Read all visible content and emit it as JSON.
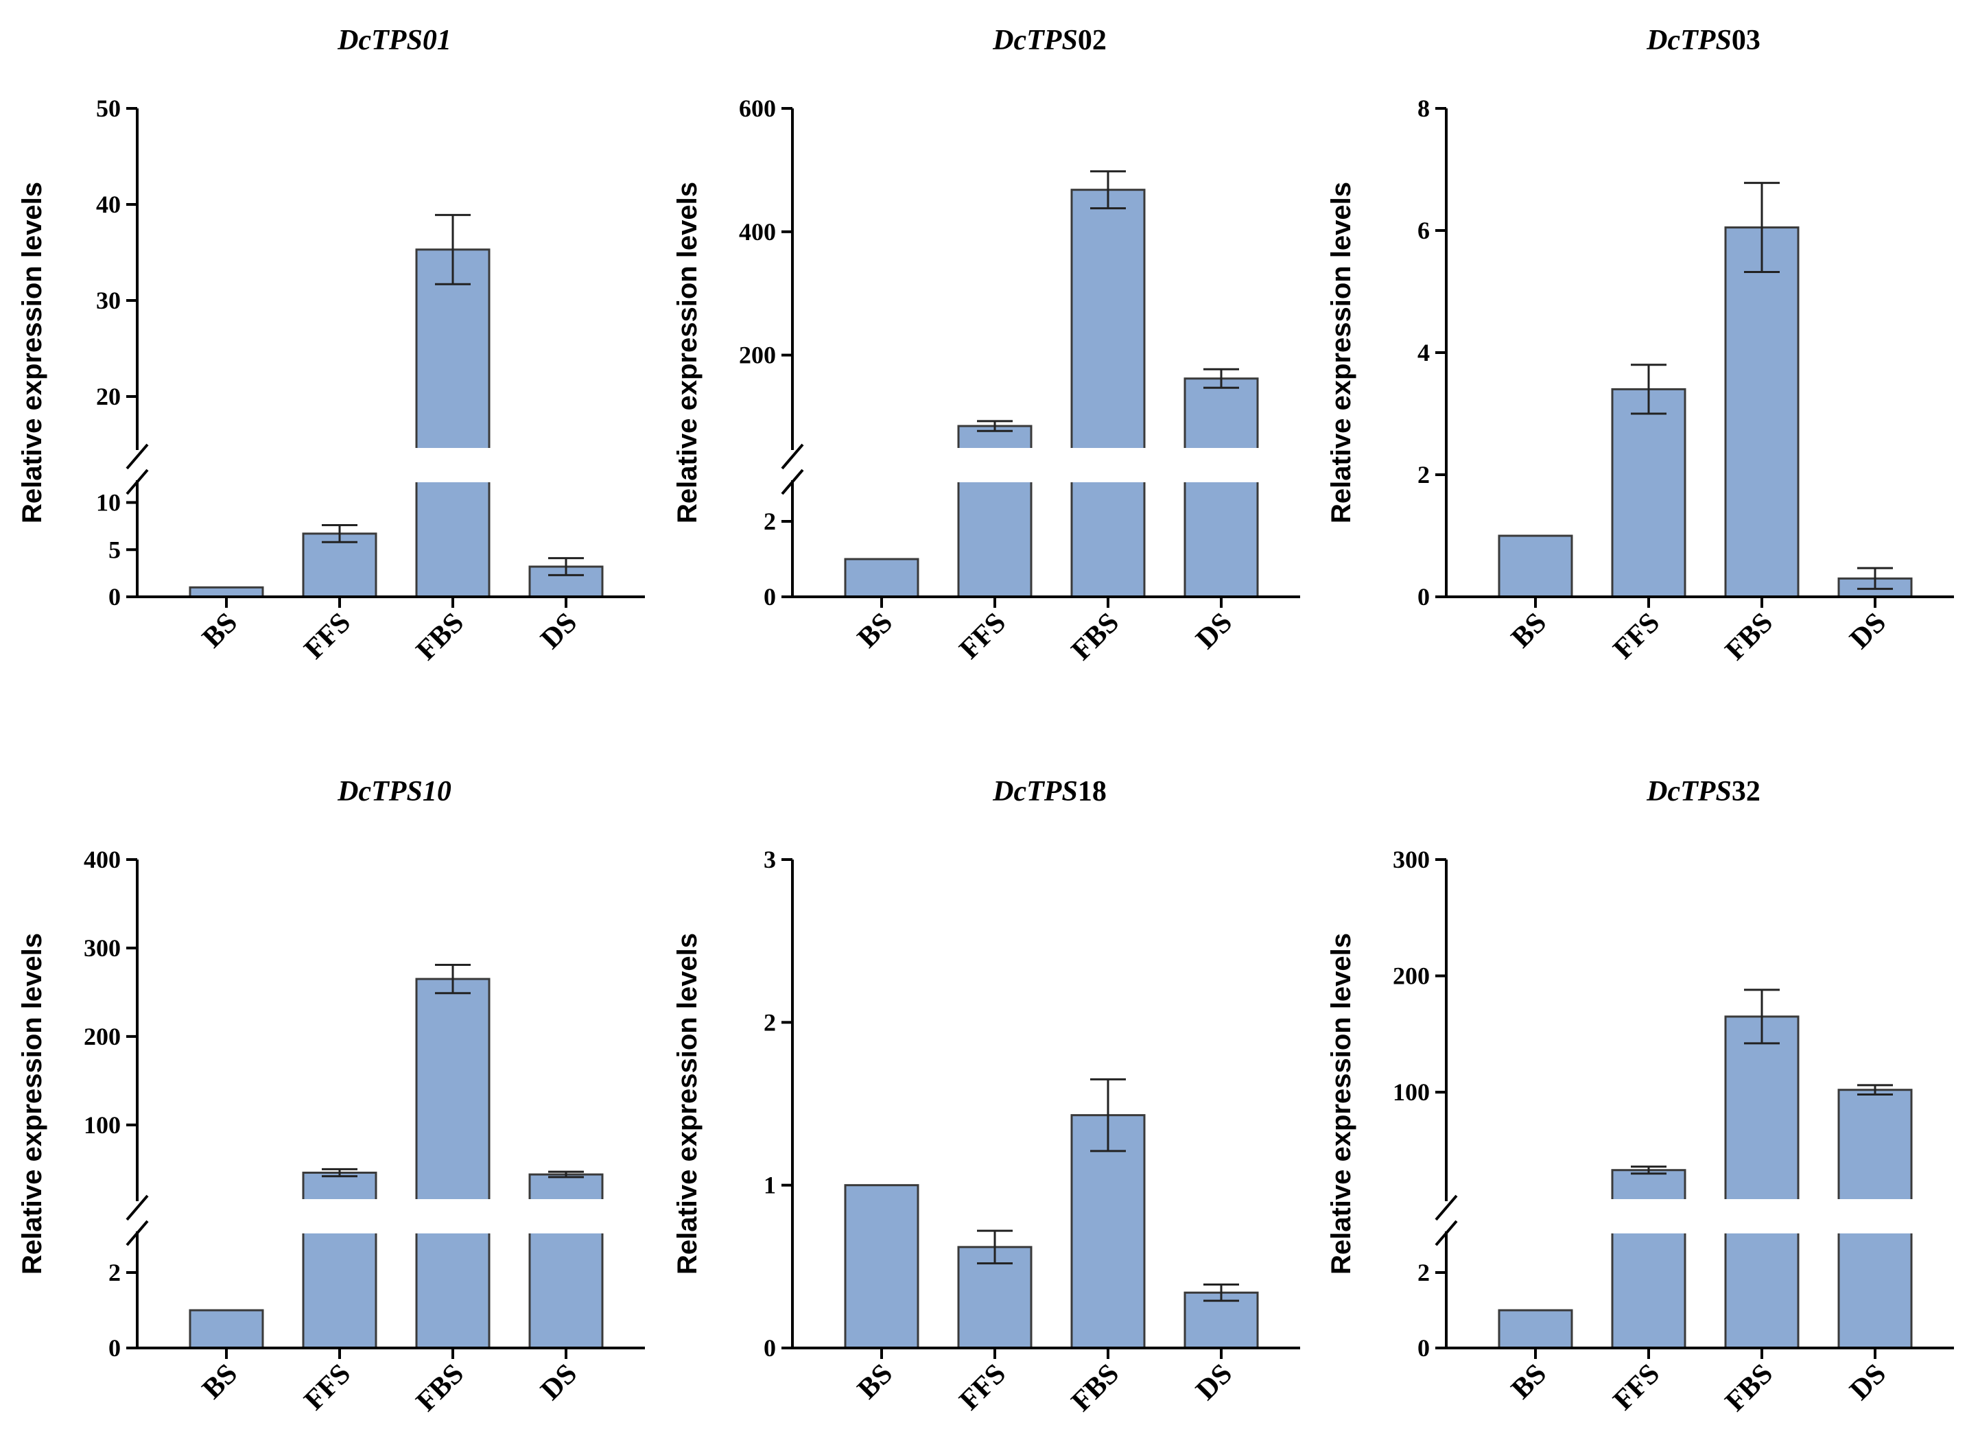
{
  "chart_data": [
    {
      "type": "bar",
      "title_italic": "DcTPS01",
      "title_rest": "",
      "ylabel": "Relative expression levels",
      "categories": [
        "BS",
        "FFS",
        "FBS",
        "DS"
      ],
      "values": [
        1,
        6.7,
        35.3,
        3.2
      ],
      "errors": [
        0,
        0.9,
        3.6,
        0.9
      ],
      "lower_range": [
        0,
        12
      ],
      "upper_range": [
        15,
        50
      ],
      "lower_ticks": [
        0,
        5,
        10
      ],
      "upper_ticks": [
        20,
        30,
        40,
        50
      ],
      "bar_color": "#8caad3"
    },
    {
      "type": "bar",
      "title_italic": "DcTPS",
      "title_rest": "02",
      "ylabel": "Relative expression levels",
      "categories": [
        "BS",
        "FFS",
        "FBS",
        "DS"
      ],
      "values": [
        1,
        85,
        468,
        162
      ],
      "errors": [
        0,
        8,
        30,
        15
      ],
      "lower_range": [
        0,
        3
      ],
      "upper_range": [
        55,
        600
      ],
      "lower_ticks": [
        0,
        2
      ],
      "upper_ticks": [
        200,
        400,
        600
      ],
      "bar_color": "#8caad3"
    },
    {
      "type": "bar",
      "title_italic": "DcTPS",
      "title_rest": "03",
      "ylabel": "Relative expression levels",
      "categories": [
        "BS",
        "FFS",
        "FBS",
        "DS"
      ],
      "values": [
        1,
        3.4,
        6.05,
        0.3
      ],
      "errors": [
        0,
        0.4,
        0.73,
        0.17
      ],
      "lower_range": null,
      "upper_range": [
        0,
        8
      ],
      "lower_ticks": [],
      "upper_ticks": [
        0,
        2,
        4,
        6,
        8
      ],
      "bar_color": "#8caad3"
    },
    {
      "type": "bar",
      "title_italic": "DcTPS10",
      "title_rest": "",
      "ylabel": "Relative expression levels",
      "categories": [
        "BS",
        "FFS",
        "FBS",
        "DS"
      ],
      "values": [
        1,
        46,
        265,
        44
      ],
      "errors": [
        0,
        4,
        16,
        3
      ],
      "lower_range": [
        0,
        3
      ],
      "upper_range": [
        20,
        400
      ],
      "lower_ticks": [
        0,
        2
      ],
      "upper_ticks": [
        100,
        200,
        300,
        400
      ],
      "bar_color": "#8caad3"
    },
    {
      "type": "bar",
      "title_italic": "DcTPS",
      "title_rest": "18",
      "ylabel": "Relative expression levels",
      "categories": [
        "BS",
        "FFS",
        "FBS",
        "DS"
      ],
      "values": [
        1,
        0.62,
        1.43,
        0.34
      ],
      "errors": [
        0,
        0.1,
        0.22,
        0.05
      ],
      "lower_range": null,
      "upper_range": [
        0,
        3
      ],
      "lower_ticks": [],
      "upper_ticks": [
        0,
        1,
        2,
        3
      ],
      "bar_color": "#8caad3"
    },
    {
      "type": "bar",
      "title_italic": "DcTPS",
      "title_rest": "32",
      "ylabel": "Relative expression levels",
      "categories": [
        "BS",
        "FFS",
        "FBS",
        "DS"
      ],
      "values": [
        1,
        33,
        165,
        102
      ],
      "errors": [
        0,
        3,
        23,
        4
      ],
      "lower_range": [
        0,
        3
      ],
      "upper_range": [
        11,
        300
      ],
      "lower_ticks": [
        0,
        2
      ],
      "upper_ticks": [
        100,
        200,
        300
      ],
      "bar_color": "#8caad3"
    }
  ]
}
